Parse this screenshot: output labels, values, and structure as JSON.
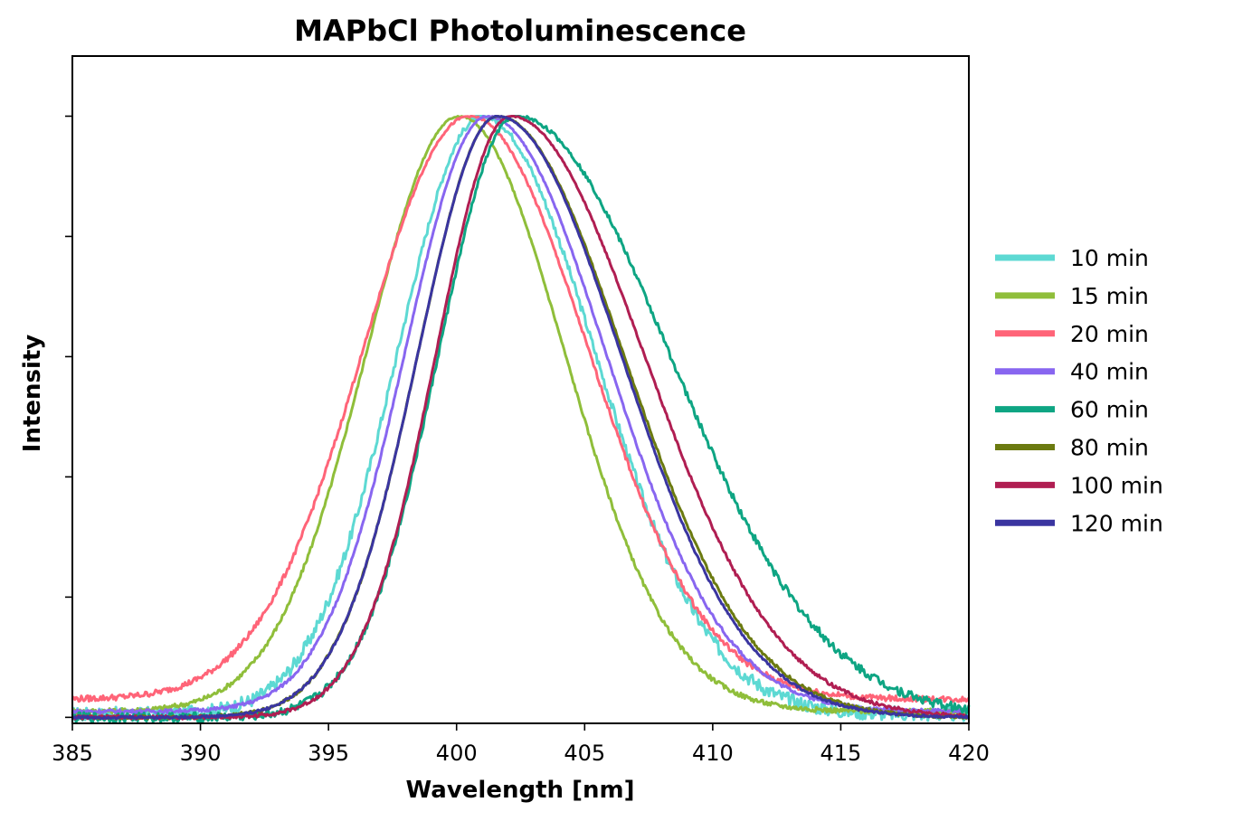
{
  "chart_data": {
    "type": "line",
    "title": "MAPbCl Photoluminescence",
    "xlabel": "Wavelength [nm]",
    "ylabel": "Intensity",
    "xlim": [
      385,
      420
    ],
    "ylim": [
      -0.01,
      1.1
    ],
    "x_ticks": [
      385,
      390,
      395,
      400,
      405,
      410,
      415,
      420
    ],
    "y_ticks": [
      0,
      0.2,
      0.4,
      0.6,
      0.8,
      1.0
    ],
    "y_tick_labels_shown": false,
    "grid": false,
    "legend_position": "right",
    "series": [
      {
        "name": "10 min",
        "color": "#5dd9d3",
        "peak": 401.0,
        "sigma_left": 3.3,
        "sigma_right": 4.4,
        "baseline": 0.005,
        "noise": 0.012
      },
      {
        "name": "15 min",
        "color": "#8fbe3a",
        "peak": 400.1,
        "sigma_left": 3.6,
        "sigma_right": 4.1,
        "baseline": 0.01,
        "noise": 0.004
      },
      {
        "name": "20 min",
        "color": "#ff6478",
        "peak": 400.5,
        "sigma_left": 4.1,
        "sigma_right": 4.6,
        "baseline": 0.03,
        "noise": 0.005
      },
      {
        "name": "40 min",
        "color": "#8866f0",
        "peak": 401.2,
        "sigma_left": 3.2,
        "sigma_right": 4.6,
        "baseline": 0.01,
        "noise": 0.003
      },
      {
        "name": "60 min",
        "color": "#0ea583",
        "peak": 402.3,
        "sigma_left": 3.0,
        "sigma_right": 6.0,
        "baseline": 0.0,
        "noise": 0.008
      },
      {
        "name": "80 min",
        "color": "#6b7a10",
        "peak": 401.6,
        "sigma_left": 3.1,
        "sigma_right": 4.9,
        "baseline": 0.0,
        "noise": 0.003
      },
      {
        "name": "100 min",
        "color": "#b01e52",
        "peak": 402.1,
        "sigma_left": 2.9,
        "sigma_right": 5.2,
        "baseline": 0.0,
        "noise": 0.003
      },
      {
        "name": "120 min",
        "color": "#3a35a0",
        "peak": 401.6,
        "sigma_left": 3.1,
        "sigma_right": 4.8,
        "baseline": 0.0,
        "noise": 0.002
      }
    ]
  }
}
